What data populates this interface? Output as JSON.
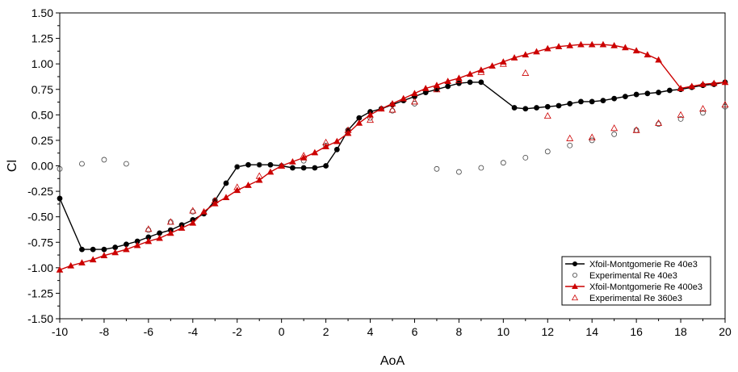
{
  "chart_data": {
    "type": "line",
    "title": "",
    "xlabel": "AoA",
    "ylabel": "Cl",
    "xlim": [
      -10,
      20
    ],
    "ylim": [
      -1.5,
      1.5
    ],
    "x_ticks": [
      "-10",
      "-8",
      "-6",
      "-4",
      "-2",
      "0",
      "2",
      "4",
      "6",
      "8",
      "10",
      "12",
      "14",
      "16",
      "18",
      "20"
    ],
    "y_ticks": [
      "1.50",
      "1.25",
      "1.00",
      "0.75",
      "0.50",
      "0.25",
      "0.00",
      "-0.25",
      "-0.50",
      "-0.75",
      "-1.00",
      "-1.25",
      "-1.50"
    ],
    "grid": false,
    "legend_position": "bottom-right",
    "series": [
      {
        "name": "Xfoil-Montgomerie Re 40e3",
        "color": "#000000",
        "marker": "filled-circle",
        "line": true,
        "points": [
          [
            -10,
            -0.32
          ],
          [
            -9,
            -0.82
          ],
          [
            -8.5,
            -0.82
          ],
          [
            -8,
            -0.82
          ],
          [
            -7.5,
            -0.8
          ],
          [
            -7,
            -0.77
          ],
          [
            -6.5,
            -0.74
          ],
          [
            -6,
            -0.7
          ],
          [
            -5.5,
            -0.66
          ],
          [
            -5,
            -0.63
          ],
          [
            -4.5,
            -0.58
          ],
          [
            -4,
            -0.53
          ],
          [
            -3.5,
            -0.47
          ],
          [
            -3,
            -0.34
          ],
          [
            -2.5,
            -0.17
          ],
          [
            -2,
            -0.01
          ],
          [
            -1.5,
            0.01
          ],
          [
            -1,
            0.01
          ],
          [
            -0.5,
            0.01
          ],
          [
            0,
            0.0
          ],
          [
            0.5,
            -0.02
          ],
          [
            1,
            -0.02
          ],
          [
            1.5,
            -0.02
          ],
          [
            2,
            0.0
          ],
          [
            2.5,
            0.16
          ],
          [
            3,
            0.35
          ],
          [
            3.5,
            0.47
          ],
          [
            4,
            0.53
          ],
          [
            4.5,
            0.56
          ],
          [
            5,
            0.6
          ],
          [
            5.5,
            0.64
          ],
          [
            6,
            0.68
          ],
          [
            6.5,
            0.72
          ],
          [
            7,
            0.75
          ],
          [
            7.5,
            0.78
          ],
          [
            8,
            0.81
          ],
          [
            8.5,
            0.82
          ],
          [
            9,
            0.82
          ],
          [
            10.5,
            0.57
          ],
          [
            11,
            0.56
          ],
          [
            11.5,
            0.57
          ],
          [
            12,
            0.58
          ],
          [
            12.5,
            0.59
          ],
          [
            13,
            0.61
          ],
          [
            13.5,
            0.63
          ],
          [
            14,
            0.63
          ],
          [
            14.5,
            0.64
          ],
          [
            15,
            0.66
          ],
          [
            15.5,
            0.68
          ],
          [
            16,
            0.7
          ],
          [
            16.5,
            0.71
          ],
          [
            17,
            0.72
          ],
          [
            17.5,
            0.74
          ],
          [
            18,
            0.75
          ],
          [
            18.5,
            0.77
          ],
          [
            19,
            0.79
          ],
          [
            19.5,
            0.8
          ],
          [
            20,
            0.82
          ]
        ]
      },
      {
        "name": "Experimental Re 40e3",
        "color": "#000000",
        "marker": "open-circle",
        "line": false,
        "points": [
          [
            -10,
            -0.03
          ],
          [
            -9,
            0.02
          ],
          [
            -8,
            0.06
          ],
          [
            -7,
            0.02
          ],
          [
            -6,
            -0.63
          ],
          [
            -5,
            -0.55
          ],
          [
            -4,
            -0.45
          ],
          [
            -3,
            -0.34
          ],
          [
            -2,
            -0.01
          ],
          [
            -1,
            0.01
          ],
          [
            0,
            0.0
          ],
          [
            1,
            0.05
          ],
          [
            2,
            0.2
          ],
          [
            3,
            0.35
          ],
          [
            4,
            0.47
          ],
          [
            5,
            0.54
          ],
          [
            6,
            0.61
          ],
          [
            7,
            -0.03
          ],
          [
            8,
            -0.06
          ],
          [
            9,
            -0.02
          ],
          [
            10,
            0.03
          ],
          [
            11,
            0.08
          ],
          [
            12,
            0.14
          ],
          [
            13,
            0.2
          ],
          [
            14,
            0.25
          ],
          [
            15,
            0.31
          ],
          [
            16,
            0.35
          ],
          [
            17,
            0.41
          ],
          [
            18,
            0.46
          ],
          [
            19,
            0.52
          ],
          [
            20,
            0.58
          ]
        ]
      },
      {
        "name": "Xfoil-Montgomerie Re 400e3",
        "color": "#cc0000",
        "marker": "filled-triangle",
        "line": true,
        "points": [
          [
            -10,
            -1.02
          ],
          [
            -9.5,
            -0.98
          ],
          [
            -9,
            -0.95
          ],
          [
            -8.5,
            -0.92
          ],
          [
            -8,
            -0.88
          ],
          [
            -7.5,
            -0.85
          ],
          [
            -7,
            -0.82
          ],
          [
            -6.5,
            -0.78
          ],
          [
            -6,
            -0.74
          ],
          [
            -5.5,
            -0.71
          ],
          [
            -5,
            -0.66
          ],
          [
            -4.5,
            -0.61
          ],
          [
            -4,
            -0.56
          ],
          [
            -3.5,
            -0.45
          ],
          [
            -3,
            -0.37
          ],
          [
            -2.5,
            -0.31
          ],
          [
            -2,
            -0.24
          ],
          [
            -1.5,
            -0.19
          ],
          [
            -1,
            -0.14
          ],
          [
            -0.5,
            -0.06
          ],
          [
            0,
            0.0
          ],
          [
            0.5,
            0.04
          ],
          [
            1,
            0.08
          ],
          [
            1.5,
            0.13
          ],
          [
            2,
            0.19
          ],
          [
            2.5,
            0.24
          ],
          [
            3,
            0.32
          ],
          [
            3.5,
            0.42
          ],
          [
            4,
            0.5
          ],
          [
            4.5,
            0.56
          ],
          [
            5,
            0.61
          ],
          [
            5.5,
            0.66
          ],
          [
            6,
            0.71
          ],
          [
            6.5,
            0.76
          ],
          [
            7,
            0.79
          ],
          [
            7.5,
            0.83
          ],
          [
            8,
            0.86
          ],
          [
            8.5,
            0.9
          ],
          [
            9,
            0.94
          ],
          [
            9.5,
            0.98
          ],
          [
            10,
            1.02
          ],
          [
            10.5,
            1.06
          ],
          [
            11,
            1.09
          ],
          [
            11.5,
            1.12
          ],
          [
            12,
            1.15
          ],
          [
            12.5,
            1.17
          ],
          [
            13,
            1.18
          ],
          [
            13.5,
            1.19
          ],
          [
            14,
            1.19
          ],
          [
            14.5,
            1.19
          ],
          [
            15,
            1.18
          ],
          [
            15.5,
            1.16
          ],
          [
            16,
            1.13
          ],
          [
            16.5,
            1.09
          ],
          [
            17,
            1.04
          ],
          [
            18,
            0.76
          ],
          [
            18.5,
            0.78
          ],
          [
            19,
            0.8
          ],
          [
            19.5,
            0.81
          ],
          [
            20,
            0.82
          ]
        ]
      },
      {
        "name": "Experimental Re 360e3",
        "color": "#cc0000",
        "marker": "open-triangle",
        "line": false,
        "points": [
          [
            -6,
            -0.62
          ],
          [
            -5,
            -0.55
          ],
          [
            -4,
            -0.44
          ],
          [
            -3,
            -0.34
          ],
          [
            -2,
            -0.21
          ],
          [
            -1,
            -0.1
          ],
          [
            0,
            0.0
          ],
          [
            1,
            0.1
          ],
          [
            2,
            0.23
          ],
          [
            3,
            0.35
          ],
          [
            4,
            0.45
          ],
          [
            5,
            0.55
          ],
          [
            6,
            0.63
          ],
          [
            7,
            0.75
          ],
          [
            8,
            0.84
          ],
          [
            9,
            0.92
          ],
          [
            10,
            1.0
          ],
          [
            11,
            0.91
          ],
          [
            12,
            0.49
          ],
          [
            13,
            0.27
          ],
          [
            14,
            0.28
          ],
          [
            15,
            0.37
          ],
          [
            16,
            0.35
          ],
          [
            17,
            0.42
          ],
          [
            18,
            0.5
          ],
          [
            19,
            0.56
          ],
          [
            20,
            0.6
          ]
        ]
      }
    ]
  }
}
